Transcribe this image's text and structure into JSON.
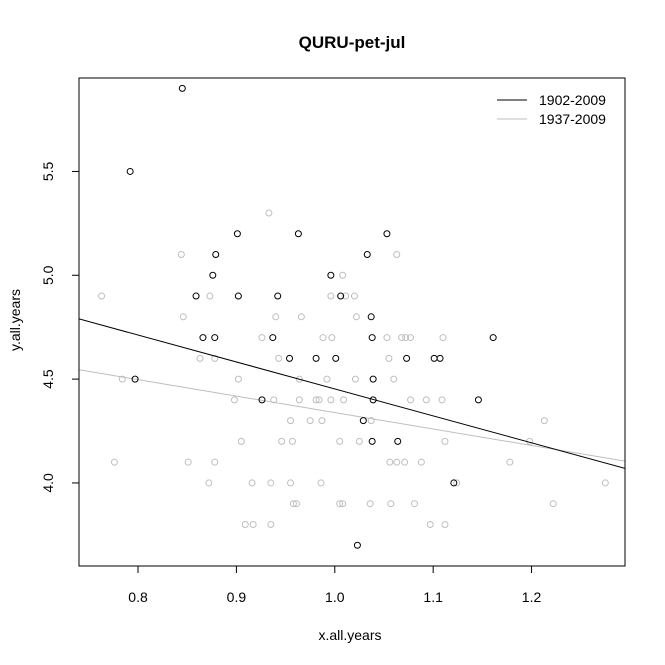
{
  "chart_data": {
    "type": "scatter",
    "title": "QURU-pet-jul",
    "xlabel": "x.all.years",
    "ylabel": "y.all.years",
    "xlim": [
      0.74,
      1.295
    ],
    "ylim": [
      3.6,
      5.95
    ],
    "xticks": [
      0.8,
      0.9,
      1.0,
      1.1,
      1.2
    ],
    "xtick_labels": [
      "0.8",
      "0.9",
      "1.0",
      "1.1",
      "1.2"
    ],
    "yticks": [
      4.0,
      4.5,
      5.0,
      5.5
    ],
    "ytick_labels": [
      "4.0",
      "4.5",
      "5.0",
      "5.5"
    ],
    "grid": false,
    "legend_position": "top-right",
    "series": [
      {
        "name": "1902-2009",
        "color": "#000000",
        "marker": "open-circle",
        "points": [
          [
            0.845,
            5.9
          ],
          [
            0.792,
            5.5
          ],
          [
            0.797,
            4.5
          ],
          [
            0.901,
            5.2
          ],
          [
            0.963,
            5.2
          ],
          [
            1.053,
            5.2
          ],
          [
            1.033,
            5.1
          ],
          [
            0.879,
            5.1
          ],
          [
            0.876,
            5.0
          ],
          [
            0.996,
            5.0
          ],
          [
            0.859,
            4.9
          ],
          [
            0.902,
            4.9
          ],
          [
            0.942,
            4.9
          ],
          [
            1.006,
            4.9
          ],
          [
            1.037,
            4.8
          ],
          [
            0.866,
            4.7
          ],
          [
            0.878,
            4.7
          ],
          [
            0.937,
            4.7
          ],
          [
            1.038,
            4.7
          ],
          [
            1.161,
            4.7
          ],
          [
            0.954,
            4.6
          ],
          [
            0.981,
            4.6
          ],
          [
            1.001,
            4.6
          ],
          [
            1.073,
            4.6
          ],
          [
            1.101,
            4.6
          ],
          [
            1.107,
            4.6
          ],
          [
            1.039,
            4.5
          ],
          [
            0.926,
            4.4
          ],
          [
            1.039,
            4.4
          ],
          [
            1.146,
            4.4
          ],
          [
            1.029,
            4.3
          ],
          [
            1.038,
            4.2
          ],
          [
            1.064,
            4.2
          ],
          [
            1.121,
            4.0
          ],
          [
            1.023,
            3.7
          ]
        ],
        "fit": {
          "x": [
            0.74,
            1.295
          ],
          "y": [
            4.79,
            4.07
          ]
        }
      },
      {
        "name": "1937-2009",
        "color": "#bebebe",
        "marker": "open-circle",
        "points": [
          [
            0.933,
            5.3
          ],
          [
            0.844,
            5.1
          ],
          [
            1.063,
            5.1
          ],
          [
            0.763,
            4.9
          ],
          [
            0.873,
            4.9
          ],
          [
            1.008,
            5.0
          ],
          [
            0.996,
            4.9
          ],
          [
            1.011,
            4.9
          ],
          [
            1.02,
            4.9
          ],
          [
            0.846,
            4.8
          ],
          [
            0.94,
            4.8
          ],
          [
            0.966,
            4.8
          ],
          [
            1.022,
            4.8
          ],
          [
            0.926,
            4.7
          ],
          [
            0.988,
            4.7
          ],
          [
            0.997,
            4.7
          ],
          [
            1.053,
            4.7
          ],
          [
            1.068,
            4.7
          ],
          [
            1.072,
            4.7
          ],
          [
            1.077,
            4.7
          ],
          [
            1.11,
            4.7
          ],
          [
            0.863,
            4.6
          ],
          [
            0.878,
            4.6
          ],
          [
            0.943,
            4.6
          ],
          [
            1.055,
            4.6
          ],
          [
            0.784,
            4.5
          ],
          [
            0.902,
            4.5
          ],
          [
            0.964,
            4.5
          ],
          [
            0.992,
            4.5
          ],
          [
            1.021,
            4.5
          ],
          [
            1.06,
            4.5
          ],
          [
            0.898,
            4.4
          ],
          [
            0.938,
            4.4
          ],
          [
            0.964,
            4.4
          ],
          [
            0.981,
            4.4
          ],
          [
            0.984,
            4.4
          ],
          [
            0.996,
            4.4
          ],
          [
            1.009,
            4.4
          ],
          [
            1.077,
            4.4
          ],
          [
            1.093,
            4.4
          ],
          [
            1.109,
            4.4
          ],
          [
            0.955,
            4.3
          ],
          [
            0.975,
            4.3
          ],
          [
            0.987,
            4.3
          ],
          [
            1.037,
            4.3
          ],
          [
            1.213,
            4.3
          ],
          [
            0.905,
            4.2
          ],
          [
            0.946,
            4.2
          ],
          [
            0.957,
            4.2
          ],
          [
            1.005,
            4.2
          ],
          [
            1.025,
            4.2
          ],
          [
            1.112,
            4.2
          ],
          [
            1.198,
            4.2
          ],
          [
            0.776,
            4.1
          ],
          [
            0.851,
            4.1
          ],
          [
            0.878,
            4.1
          ],
          [
            1.056,
            4.1
          ],
          [
            1.063,
            4.1
          ],
          [
            1.071,
            4.1
          ],
          [
            1.088,
            4.1
          ],
          [
            1.178,
            4.1
          ],
          [
            0.872,
            4.0
          ],
          [
            0.916,
            4.0
          ],
          [
            0.935,
            4.0
          ],
          [
            0.955,
            4.0
          ],
          [
            0.986,
            4.0
          ],
          [
            1.124,
            4.0
          ],
          [
            1.275,
            4.0
          ],
          [
            0.958,
            3.9
          ],
          [
            0.961,
            3.9
          ],
          [
            1.005,
            3.9
          ],
          [
            1.008,
            3.9
          ],
          [
            1.036,
            3.9
          ],
          [
            1.057,
            3.9
          ],
          [
            1.081,
            3.9
          ],
          [
            1.222,
            3.9
          ],
          [
            0.909,
            3.8
          ],
          [
            0.917,
            3.8
          ],
          [
            0.935,
            3.8
          ],
          [
            1.097,
            3.8
          ],
          [
            1.112,
            3.8
          ]
        ],
        "fit": {
          "x": [
            0.74,
            1.295
          ],
          "y": [
            4.545,
            4.105
          ]
        }
      }
    ]
  }
}
